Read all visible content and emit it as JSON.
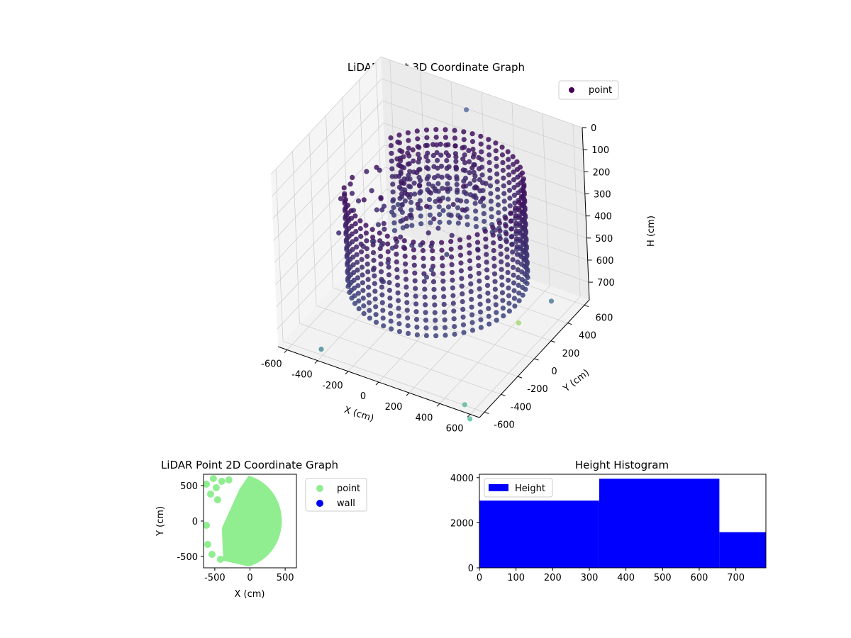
{
  "colors": {
    "point_3d": "#440154",
    "point_2d": "#90ee90",
    "wall": "#0000ff",
    "histogram": "#0000ff",
    "axis": "#000000",
    "grid3d": "#d0d0d0"
  },
  "chart_data": [
    {
      "id": "lidar-3d",
      "type": "scatter",
      "title": "LiDAR Point 3D Coordinate Graph",
      "xlabel": "X (cm)",
      "ylabel": "Y (cm)",
      "zlabel": "H (cm)",
      "xlim": [
        -660,
        660
      ],
      "ylim": [
        -660,
        660
      ],
      "zlim": [
        780,
        0
      ],
      "x_ticks": [
        -600,
        -400,
        -200,
        0,
        200,
        400,
        600
      ],
      "y_ticks": [
        -600,
        -400,
        -200,
        0,
        200,
        400,
        600
      ],
      "z_ticks": [
        0,
        100,
        200,
        300,
        400,
        500,
        600,
        700
      ],
      "legend": [
        "point"
      ],
      "legend_position": "top-right",
      "grid": true,
      "series": [
        {
          "name": "point",
          "description_of_distribution": "ring",
          "outliers": [
            {
              "x": -350,
              "y": -700,
              "h": 700
            },
            {
              "x": 560,
              "y": -650,
              "h": 750
            },
            {
              "x": 620,
              "y": -700,
              "h": 780
            },
            {
              "x": 450,
              "y": 200,
              "h": 750
            },
            {
              "x": 500,
              "y": 500,
              "h": 760
            },
            {
              "x": -100,
              "y": 650,
              "h": 100
            }
          ]
        }
      ]
    },
    {
      "id": "lidar-2d",
      "type": "scatter",
      "title": "LiDAR Point 2D Coordinate Graph",
      "xlabel": "X (cm)",
      "ylabel": "Y (cm)",
      "xlim": [
        -660,
        660
      ],
      "ylim": [
        -660,
        660
      ],
      "x_ticks": [
        -500,
        0,
        500
      ],
      "y_ticks": [
        500,
        0,
        -500
      ],
      "legend": [
        "point",
        "wall"
      ],
      "legend_position": "outside-right",
      "grid": false
    },
    {
      "id": "height-hist",
      "type": "bar",
      "title": "Height Histogram",
      "xlabel": "",
      "ylabel": "",
      "bins": [
        {
          "from": 0,
          "to": 327,
          "count": 2980
        },
        {
          "from": 327,
          "to": 655,
          "count": 3950
        },
        {
          "from": 655,
          "to": 782,
          "count": 1580
        }
      ],
      "xlim": [
        0,
        782
      ],
      "ylim": [
        0,
        4150
      ],
      "x_ticks": [
        0,
        100,
        200,
        300,
        400,
        500,
        600,
        700
      ],
      "y_ticks": [
        0,
        2000,
        4000
      ],
      "legend": [
        "Height"
      ],
      "legend_position": "top-left"
    }
  ]
}
